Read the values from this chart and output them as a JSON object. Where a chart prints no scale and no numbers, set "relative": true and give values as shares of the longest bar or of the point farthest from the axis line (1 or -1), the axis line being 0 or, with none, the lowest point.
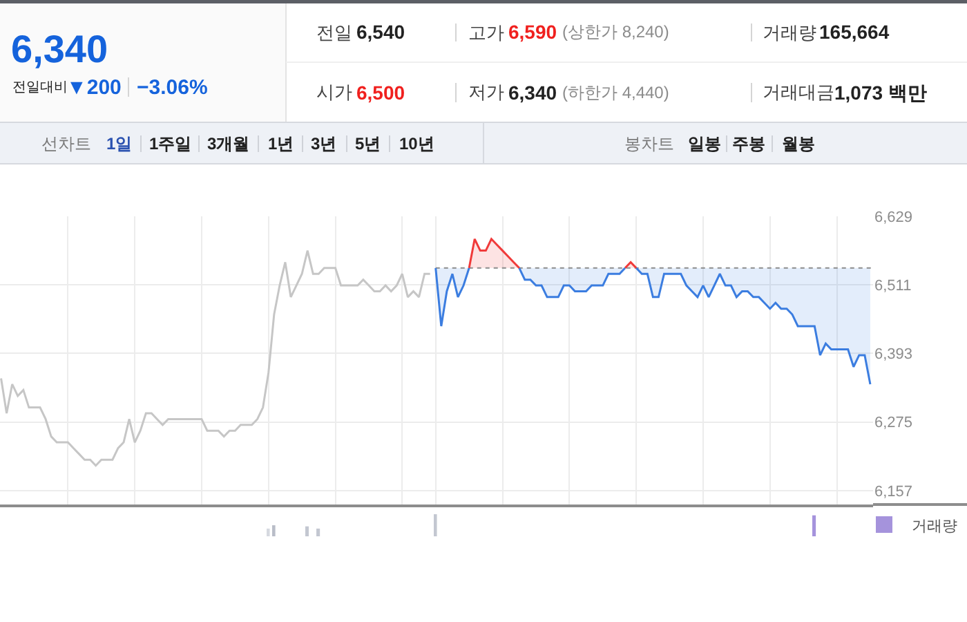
{
  "chart_data": [
    {
      "type": "other",
      "annotations": [
        "6,340",
        "전일대비",
        "▼200",
        "−3.06%",
        "전일",
        "6,540",
        "고가",
        "6,590",
        "(상한가 8,240)",
        "거래량",
        "165,664",
        "시가",
        "6,500",
        "저가",
        "6,340",
        "(하한가 4,440)",
        "거래대금",
        "1,073 백만",
        "선차트",
        "1일",
        "1주일",
        "3개월",
        "1년",
        "3년",
        "5년",
        "10년",
        "봉차트",
        "일봉",
        "주봉",
        "월봉"
      ]
    },
    {
      "type": "line",
      "categories": [
        null,
        null,
        null,
        null,
        null,
        null,
        null,
        null,
        null,
        null,
        null,
        null,
        null,
        null,
        null,
        null,
        null,
        null,
        null,
        null,
        null,
        null,
        null,
        null,
        null,
        null,
        null,
        null,
        null,
        null,
        null,
        null,
        null,
        null,
        null,
        null,
        null,
        null,
        null,
        null,
        null,
        null,
        null,
        null,
        null,
        null,
        null,
        null,
        null,
        null,
        null,
        null,
        null,
        null,
        null,
        null,
        null,
        null,
        null,
        null,
        null,
        null,
        null,
        null,
        null,
        null,
        null,
        null,
        null,
        null,
        null,
        null,
        null,
        null,
        null,
        null,
        null,
        null,
        null,
        null,
        null,
        null,
        null,
        null,
        null,
        null,
        null,
        null,
        null,
        null,
        null,
        null,
        null,
        null,
        null,
        null,
        null,
        null,
        null,
        null,
        null,
        null,
        null,
        null,
        null,
        null,
        null,
        null,
        null,
        null,
        null,
        null,
        null,
        null,
        null,
        null,
        null,
        null,
        null,
        null,
        null,
        null,
        null,
        null,
        null,
        null,
        null,
        null,
        null,
        null,
        null,
        null,
        null,
        null,
        null,
        null,
        null,
        null,
        null,
        null,
        null,
        null,
        null,
        null,
        null,
        null,
        null,
        null,
        null,
        null,
        null,
        null,
        null,
        null,
        null,
        null,
        null
      ],
      "series": [
        {
          "type": "line",
          "color": "#c6c6c6",
          "values": [
            6350,
            6290,
            6340,
            6320,
            6330,
            6300,
            6300,
            6300,
            6280,
            6250,
            6240,
            6240,
            6240,
            6230,
            6220,
            6210,
            6210,
            6200,
            6210,
            6210,
            6210,
            6230,
            6240,
            6280,
            6240,
            6260,
            6290,
            6290,
            6280,
            6270,
            6280,
            6280,
            6280,
            6280,
            6280,
            6280,
            6280,
            6260,
            6260,
            6260,
            6250,
            6260,
            6260,
            6270,
            6270,
            6270,
            6280,
            6300,
            6360,
            6460,
            6510,
            6550,
            6490,
            6510,
            6530,
            6570,
            6530,
            6530,
            6540,
            6540,
            6540,
            6510,
            6510,
            6510,
            6510,
            6520,
            6510,
            6500,
            6500,
            6510,
            6500,
            6510,
            6530,
            6490,
            6500,
            6490,
            6530,
            6530,
            null,
            null,
            null,
            null,
            null,
            null,
            null,
            null,
            null,
            null,
            null,
            null,
            null,
            null,
            null,
            null,
            null,
            null,
            null,
            null,
            null,
            null,
            null,
            null,
            null,
            null,
            null,
            null,
            null,
            null,
            null,
            null,
            null,
            null,
            null,
            null,
            null,
            null,
            null,
            null,
            null,
            null,
            null,
            null,
            null,
            null,
            null,
            null,
            null,
            null,
            null,
            null,
            null,
            null,
            null,
            null,
            null,
            null,
            null,
            null,
            null,
            null,
            null,
            null,
            null,
            null,
            null,
            null,
            null,
            null,
            null,
            null,
            null,
            null,
            null,
            null,
            null,
            null,
            null
          ]
        },
        {
          "type": "line",
          "color": "#3b7de0",
          "values": [
            null,
            null,
            null,
            null,
            null,
            null,
            null,
            null,
            null,
            null,
            null,
            null,
            null,
            null,
            null,
            null,
            null,
            null,
            null,
            null,
            null,
            null,
            null,
            null,
            null,
            null,
            null,
            null,
            null,
            null,
            null,
            null,
            null,
            null,
            null,
            null,
            null,
            null,
            null,
            null,
            null,
            null,
            null,
            null,
            null,
            null,
            null,
            null,
            null,
            null,
            null,
            null,
            null,
            null,
            null,
            null,
            null,
            null,
            null,
            null,
            null,
            null,
            null,
            null,
            null,
            null,
            null,
            null,
            null,
            null,
            null,
            null,
            null,
            null,
            null,
            null,
            null,
            null,
            6540,
            6440,
            6500,
            6530,
            6490,
            6510,
            6540,
            null,
            null,
            null,
            null,
            null,
            null,
            null,
            null,
            6540,
            6520,
            6520,
            6510,
            6510,
            6490,
            6490,
            6490,
            6510,
            6510,
            6500,
            6500,
            6500,
            6510,
            6510,
            6510,
            6530,
            6530,
            6530,
            6540,
            null,
            6540,
            6530,
            6530,
            6490,
            6490,
            6530,
            6530,
            6530,
            6530,
            6510,
            6500,
            6490,
            6510,
            6490,
            6510,
            6530,
            6510,
            6510,
            6490,
            6500,
            6500,
            6490,
            6490,
            6480,
            6470,
            6480,
            6470,
            6470,
            6460,
            6440,
            6440,
            6440,
            6440,
            6390,
            6410,
            6400,
            6400,
            6400,
            6400,
            6370,
            6390,
            6390,
            6340
          ],
          "lower": [
            null,
            null,
            null,
            null,
            null,
            null,
            null,
            null,
            null,
            null,
            null,
            null,
            null,
            null,
            null,
            null,
            null,
            null,
            null,
            null,
            null,
            null,
            null,
            null,
            null,
            null,
            null,
            null,
            null,
            null,
            null,
            null,
            null,
            null,
            null,
            null,
            null,
            null,
            null,
            null,
            null,
            null,
            null,
            null,
            null,
            null,
            null,
            null,
            null,
            null,
            null,
            null,
            null,
            null,
            null,
            null,
            null,
            null,
            null,
            null,
            null,
            null,
            null,
            null,
            null,
            null,
            null,
            null,
            null,
            null,
            null,
            null,
            null,
            null,
            null,
            null,
            null,
            null,
            6540,
            6440,
            6500,
            6530,
            6490,
            6510,
            6540,
            null,
            null,
            null,
            null,
            null,
            null,
            null,
            null,
            6540,
            6520,
            6520,
            6510,
            6510,
            6490,
            6490,
            6490,
            6510,
            6510,
            6500,
            6500,
            6500,
            6510,
            6510,
            6510,
            6530,
            6530,
            6530,
            6540,
            null,
            6540,
            6530,
            6530,
            6490,
            6490,
            6530,
            6530,
            6530,
            6530,
            6510,
            6500,
            6490,
            6510,
            6490,
            6510,
            6530,
            6510,
            6510,
            6490,
            6500,
            6500,
            6490,
            6490,
            6480,
            6470,
            6480,
            6470,
            6470,
            6460,
            6440,
            6440,
            6440,
            6440,
            6390,
            6410,
            6400,
            6400,
            6400,
            6400,
            6370,
            6390,
            6390,
            6340
          ],
          "upper": [
            null,
            null,
            null,
            null,
            null,
            null,
            null,
            null,
            null,
            null,
            null,
            null,
            null,
            null,
            null,
            null,
            null,
            null,
            null,
            null,
            null,
            null,
            null,
            null,
            null,
            null,
            null,
            null,
            null,
            null,
            null,
            null,
            null,
            null,
            null,
            null,
            null,
            null,
            null,
            null,
            null,
            null,
            null,
            null,
            null,
            null,
            null,
            null,
            null,
            null,
            null,
            null,
            null,
            null,
            null,
            null,
            null,
            null,
            null,
            null,
            null,
            null,
            null,
            null,
            null,
            null,
            null,
            null,
            null,
            null,
            null,
            null,
            null,
            null,
            null,
            null,
            null,
            null,
            6540,
            6540,
            6540,
            6540,
            6540,
            6540,
            6540,
            null,
            null,
            null,
            null,
            null,
            null,
            null,
            null,
            6540,
            6540,
            6540,
            6540,
            6540,
            6540,
            6540,
            6540,
            6540,
            6540,
            6540,
            6540,
            6540,
            6540,
            6540,
            6540,
            6540,
            6540,
            6540,
            6540,
            null,
            6540,
            6540,
            6540,
            6540,
            6540,
            6540,
            6540,
            6540,
            6540,
            6540,
            6540,
            6540,
            6540,
            6540,
            6540,
            6540,
            6540,
            6540,
            6540,
            6540,
            6540,
            6540,
            6540,
            6540,
            6540,
            6540,
            6540,
            6540,
            6540,
            6540,
            6540,
            6540,
            6540,
            6540,
            6540,
            6540,
            6540,
            6540,
            6540,
            6540,
            6540,
            6540,
            6540
          ]
        },
        {
          "type": "area",
          "color": "#f03a3a",
          "values": [
            null,
            null,
            null,
            null,
            null,
            null,
            null,
            null,
            null,
            null,
            null,
            null,
            null,
            null,
            null,
            null,
            null,
            null,
            null,
            null,
            null,
            null,
            null,
            null,
            null,
            null,
            null,
            null,
            null,
            null,
            null,
            null,
            null,
            null,
            null,
            null,
            null,
            null,
            null,
            null,
            null,
            null,
            null,
            null,
            null,
            null,
            null,
            null,
            null,
            null,
            null,
            null,
            null,
            null,
            null,
            null,
            null,
            null,
            null,
            null,
            null,
            null,
            null,
            null,
            null,
            null,
            null,
            null,
            null,
            null,
            null,
            null,
            null,
            null,
            null,
            null,
            null,
            null,
            null,
            null,
            null,
            null,
            null,
            null,
            6540,
            6590,
            6570,
            6570,
            6590,
            6580,
            6570,
            6560,
            6550,
            6540,
            null,
            null,
            null,
            null,
            null,
            null,
            null,
            null,
            null,
            null,
            null,
            null,
            null,
            null,
            null,
            null,
            null,
            null,
            6540,
            6550,
            6540,
            null,
            null,
            null,
            null,
            null,
            null,
            null,
            null,
            null,
            null,
            null,
            null,
            null,
            null,
            null,
            null,
            null,
            null,
            null,
            null,
            null,
            null,
            null,
            null,
            null,
            null,
            null,
            null,
            null,
            null,
            null,
            null,
            null,
            null,
            null,
            null,
            null,
            null,
            null,
            null,
            null,
            null
          ]
        }
      ],
      "ylim": [
        6133,
        6629
      ],
      "yticks": [
        {
          "value": 6157,
          "label": "6,157"
        },
        {
          "value": 6275,
          "label": "6,275"
        },
        {
          "value": 6393,
          "label": "6,393"
        },
        {
          "value": 6511,
          "label": "6,511"
        },
        {
          "value": 6629,
          "label": "6,629"
        }
      ],
      "ref_lines": [
        {
          "axis": "y",
          "value": 6540,
          "color": "#8c8c8c",
          "line_style": "dotted"
        }
      ],
      "grid": true,
      "tick_labels": "y"
    },
    {
      "type": "bar",
      "relative": true,
      "categories": [
        null,
        null,
        null,
        null,
        null,
        null,
        null,
        null,
        null,
        null,
        null,
        null,
        null,
        null,
        null,
        null,
        null,
        null,
        null,
        null,
        null,
        null,
        null,
        null,
        null,
        null,
        null,
        null,
        null,
        null,
        null,
        null,
        null,
        null,
        null,
        null,
        null,
        null,
        null,
        null,
        null,
        null,
        null,
        null,
        null,
        null,
        null,
        null,
        null,
        null,
        null,
        null,
        null,
        null,
        null,
        null,
        null,
        null,
        null,
        null,
        null,
        null,
        null,
        null,
        null,
        null,
        null,
        null,
        null,
        null,
        null,
        null,
        null,
        null,
        null,
        null,
        null,
        null,
        null,
        null,
        null,
        null,
        null,
        null,
        null,
        null,
        null,
        null,
        null,
        null,
        null,
        null,
        null,
        null,
        null,
        null,
        null,
        null,
        null,
        null,
        null,
        null,
        null,
        null,
        null,
        null,
        null,
        null,
        null,
        null,
        null,
        null,
        null,
        null,
        null,
        null,
        null,
        null,
        null,
        null,
        null,
        null,
        null,
        null,
        null,
        null,
        null,
        null,
        null,
        null,
        null,
        null,
        null,
        null,
        null,
        null,
        null,
        null,
        null,
        null,
        null,
        null,
        null,
        null,
        null,
        null,
        null,
        null,
        null,
        null,
        null,
        null,
        null,
        null,
        null,
        null,
        null
      ],
      "series": [
        {
          "name": "거래량",
          "color": "#a593dc",
          "values": [
            null,
            null,
            null,
            null,
            null,
            null,
            null,
            null,
            null,
            null,
            null,
            null,
            null,
            null,
            null,
            null,
            null,
            null,
            null,
            null,
            null,
            null,
            null,
            null,
            null,
            null,
            null,
            null,
            null,
            null,
            null,
            null,
            null,
            null,
            null,
            null,
            null,
            null,
            null,
            null,
            null,
            null,
            null,
            null,
            null,
            null,
            null,
            null,
            0.35,
            0.5,
            null,
            null,
            null,
            null,
            null,
            0.45,
            null,
            0.35,
            null,
            null,
            null,
            null,
            null,
            null,
            null,
            null,
            null,
            null,
            null,
            null,
            null,
            null,
            null,
            null,
            null,
            null,
            null,
            null,
            1,
            null,
            null,
            null,
            null,
            null,
            null,
            null,
            null,
            null,
            null,
            null,
            null,
            null,
            null,
            null,
            null,
            null,
            null,
            null,
            null,
            null,
            null,
            null,
            null,
            null,
            null,
            null,
            null,
            null,
            null,
            null,
            null,
            null,
            null,
            null,
            null,
            null,
            null,
            null,
            null,
            null,
            null,
            null,
            null,
            null,
            null,
            null,
            null,
            null,
            null,
            null,
            null,
            null,
            null,
            null,
            null,
            null,
            null,
            null,
            null,
            null,
            null,
            null,
            null,
            null,
            null,
            null,
            0.95,
            null,
            null,
            null,
            null,
            null,
            null,
            null,
            null,
            null,
            null
          ],
          "colors": [
            null,
            null,
            null,
            null,
            null,
            null,
            null,
            null,
            null,
            null,
            null,
            null,
            null,
            null,
            null,
            null,
            null,
            null,
            null,
            null,
            null,
            null,
            null,
            null,
            null,
            null,
            null,
            null,
            null,
            null,
            null,
            null,
            null,
            null,
            null,
            null,
            null,
            null,
            null,
            null,
            null,
            null,
            null,
            null,
            null,
            null,
            null,
            null,
            "#d6d9e0",
            "#b9bdc8",
            null,
            null,
            null,
            null,
            null,
            "#c3c7d1",
            null,
            "#c3c7d1",
            null,
            null,
            null,
            null,
            null,
            null,
            null,
            null,
            null,
            null,
            null,
            null,
            null,
            null,
            null,
            null,
            null,
            null,
            null,
            null,
            "#c3c7d1",
            null,
            null,
            null,
            null,
            null,
            null,
            null,
            null,
            null,
            null,
            null,
            null,
            null,
            null,
            null,
            null,
            null,
            null,
            null,
            null,
            null,
            null,
            null,
            null,
            null,
            null,
            null,
            null,
            null,
            null,
            null,
            null,
            null,
            null,
            null,
            null,
            null,
            null,
            null,
            null,
            null,
            null,
            null,
            null,
            null,
            null,
            null,
            null,
            null,
            null,
            null,
            null,
            null,
            null,
            null,
            null,
            null,
            null,
            null,
            null,
            null,
            null,
            null,
            null,
            null,
            null,
            null,
            null,
            null,
            null,
            null,
            null,
            null,
            null,
            null,
            null,
            null,
            null
          ]
        }
      ],
      "legend": "right",
      "tick_labels": false
    }
  ]
}
